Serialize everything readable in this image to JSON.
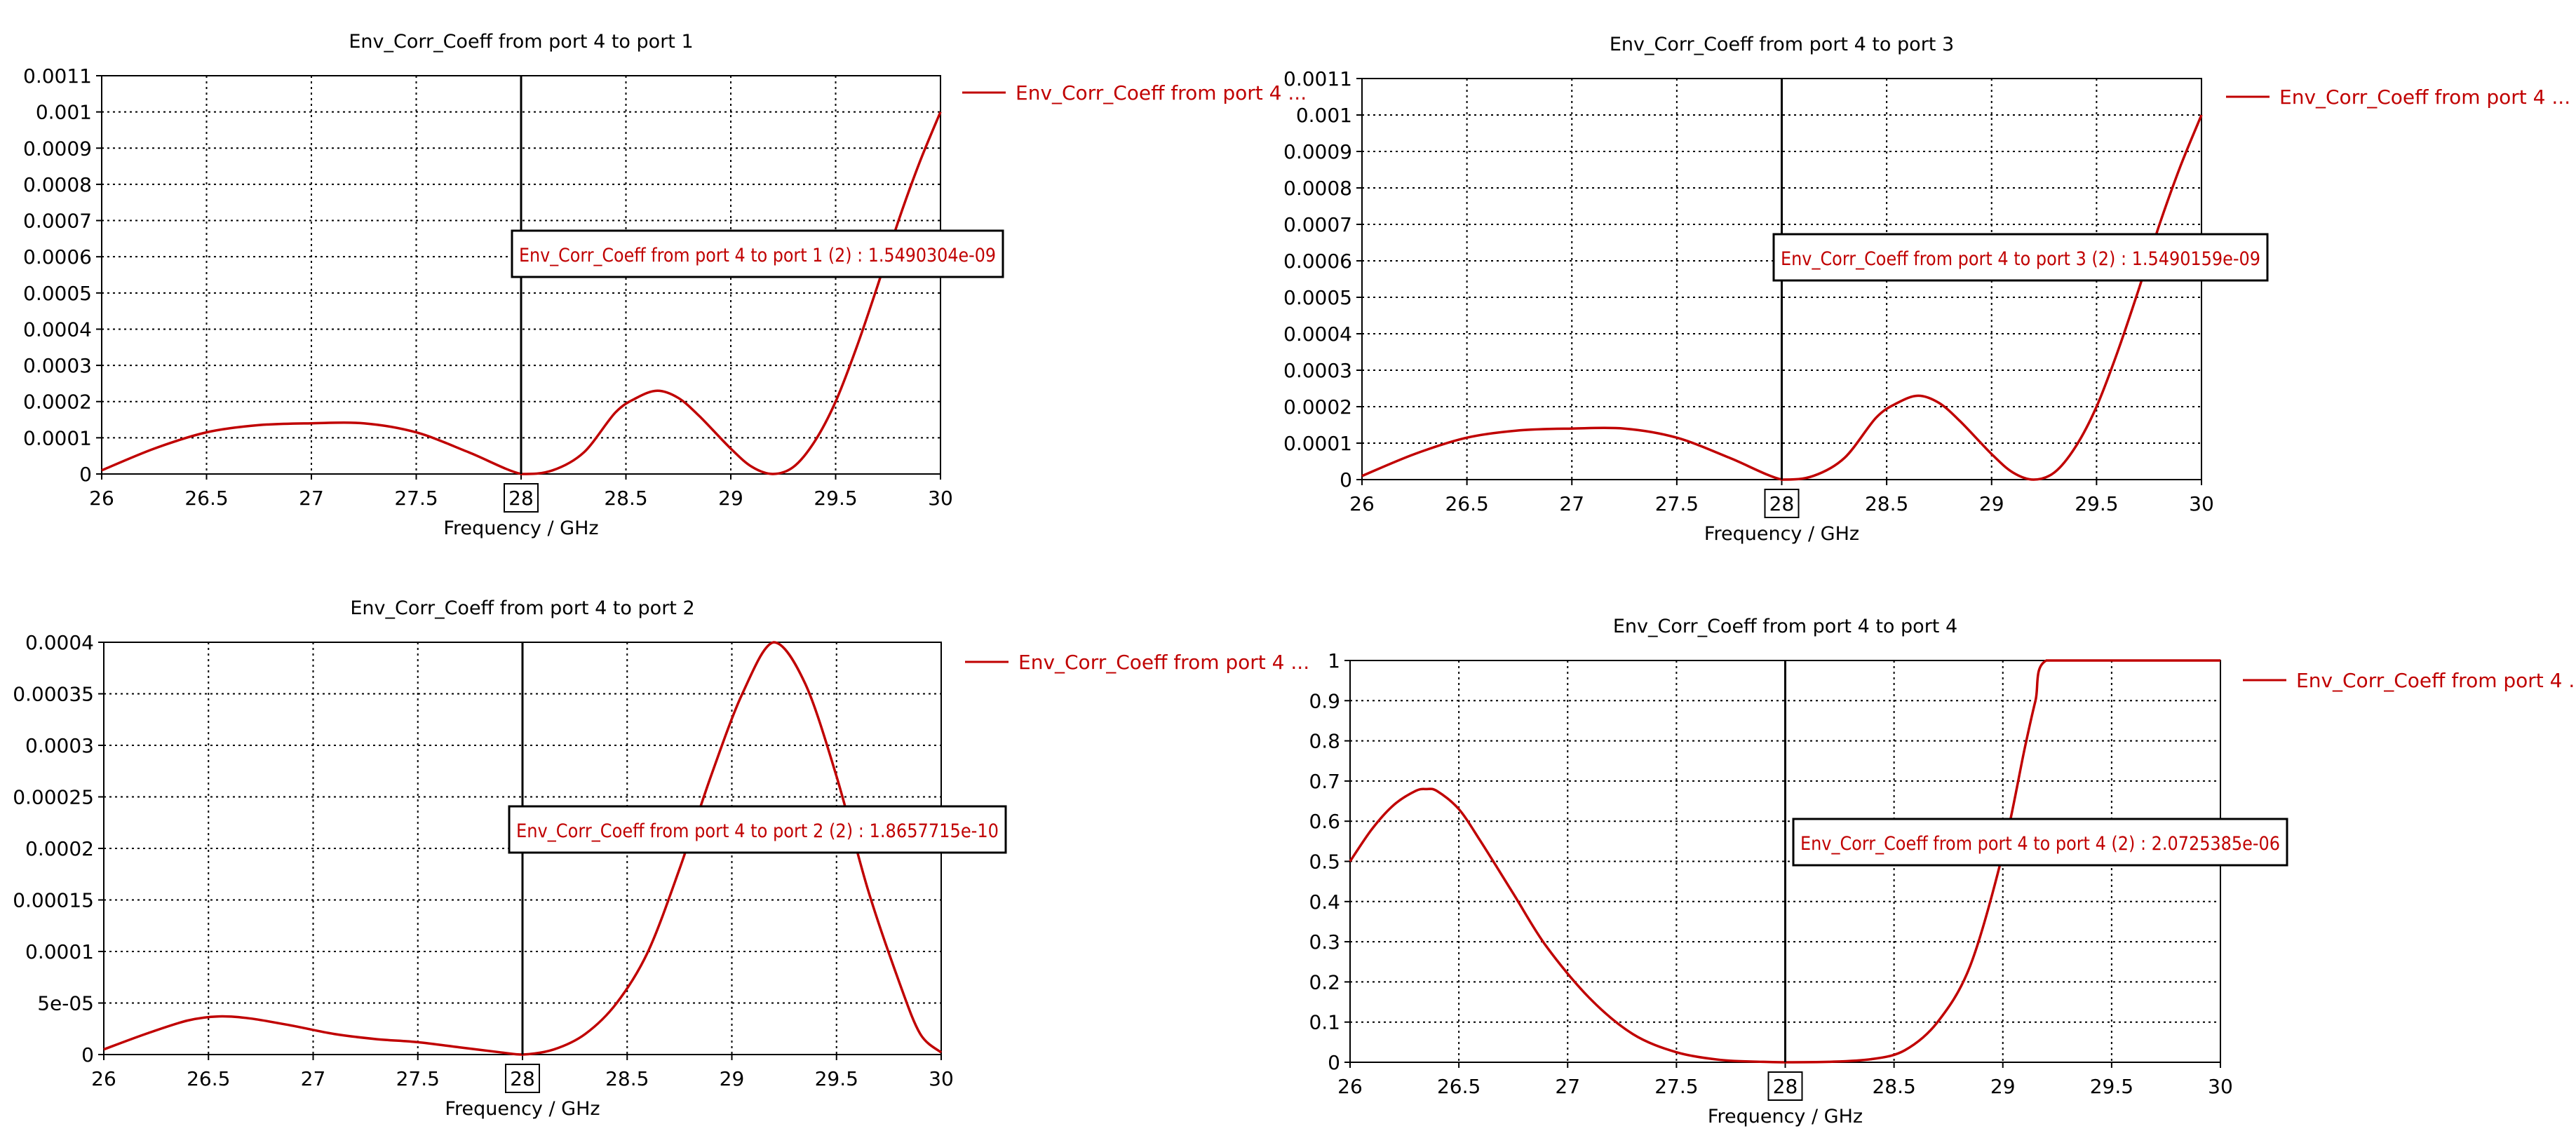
{
  "style": {
    "curve_color": "#c00000",
    "grid_color": "#000000",
    "axis_color": "#000000",
    "marker_box_color": "#000000"
  },
  "chart_data": [
    {
      "type": "line",
      "title": "Env_Corr_Coeff from port 4 to port 1",
      "xlabel": "Frequency / GHz",
      "ylabel": "",
      "xlim": [
        26,
        30
      ],
      "ylim": [
        0,
        0.0011
      ],
      "x_ticks": [
        "26",
        "26.5",
        "27",
        "27.5",
        "28",
        "28.5",
        "29",
        "29.5",
        "30"
      ],
      "y_ticks": [
        "0",
        "0.0001",
        "0.0002",
        "0.0003",
        "0.0004",
        "0.0005",
        "0.0006",
        "0.0007",
        "0.0008",
        "0.0009",
        "0.001",
        "0.0011"
      ],
      "grid": true,
      "legend": "top-right",
      "marker": {
        "x": 28,
        "x_label": "28",
        "label": "Env_Corr_Coeff from port 4 to port 1 (2) : 1.5490304e-09"
      },
      "series": [
        {
          "name": "Env_Corr_Coeff from port 4 ...",
          "x": [
            26,
            26.25,
            26.5,
            26.75,
            27,
            27.25,
            27.5,
            27.75,
            28,
            28.15,
            28.3,
            28.45,
            28.55,
            28.65,
            28.75,
            28.85,
            29,
            29.1,
            29.2,
            29.3,
            29.4,
            29.5,
            29.6,
            29.7,
            29.8,
            29.9,
            30
          ],
          "y": [
            1e-05,
            7e-05,
            0.000115,
            0.000135,
            0.00014,
            0.00014,
            0.000115,
            6e-05,
            1e-07,
            1e-05,
            6e-05,
            0.00017,
            0.00021,
            0.00023,
            0.00021,
            0.00016,
            7e-05,
            2e-05,
            0,
            2e-05,
            9e-05,
            0.0002,
            0.00035,
            0.00052,
            0.0007,
            0.00086,
            0.001
          ]
        }
      ]
    },
    {
      "type": "line",
      "title": "Env_Corr_Coeff from port 4 to port 3",
      "xlabel": "Frequency / GHz",
      "ylabel": "",
      "xlim": [
        26,
        30
      ],
      "ylim": [
        0,
        0.0011
      ],
      "x_ticks": [
        "26",
        "26.5",
        "27",
        "27.5",
        "28",
        "28.5",
        "29",
        "29.5",
        "30"
      ],
      "y_ticks": [
        "0",
        "0.0001",
        "0.0002",
        "0.0003",
        "0.0004",
        "0.0005",
        "0.0006",
        "0.0007",
        "0.0008",
        "0.0009",
        "0.001",
        "0.0011"
      ],
      "grid": true,
      "legend": "top-right",
      "marker": {
        "x": 28,
        "x_label": "28",
        "label": "Env_Corr_Coeff from port 4 to port 3 (2) : 1.5490159e-09"
      },
      "series": [
        {
          "name": "Env_Corr_Coeff from port 4 ...",
          "x": [
            26,
            26.25,
            26.5,
            26.75,
            27,
            27.25,
            27.5,
            27.75,
            28,
            28.15,
            28.3,
            28.45,
            28.55,
            28.65,
            28.75,
            28.85,
            29,
            29.1,
            29.2,
            29.3,
            29.4,
            29.5,
            29.6,
            29.7,
            29.8,
            29.9,
            30
          ],
          "y": [
            1e-05,
            7e-05,
            0.000115,
            0.000135,
            0.00014,
            0.00014,
            0.000115,
            6e-05,
            1e-07,
            1e-05,
            6e-05,
            0.00017,
            0.00021,
            0.00023,
            0.00021,
            0.00016,
            7e-05,
            2e-05,
            0,
            2e-05,
            9e-05,
            0.0002,
            0.00035,
            0.00052,
            0.0007,
            0.00086,
            0.001
          ]
        }
      ]
    },
    {
      "type": "line",
      "title": "Env_Corr_Coeff from port 4 to port 2",
      "xlabel": "Frequency / GHz",
      "ylabel": "",
      "xlim": [
        26,
        30
      ],
      "ylim": [
        0,
        0.0004
      ],
      "x_ticks": [
        "26",
        "26.5",
        "27",
        "27.5",
        "28",
        "28.5",
        "29",
        "29.5",
        "30"
      ],
      "y_ticks": [
        "0",
        "5e-05",
        "0.0001",
        "0.00015",
        "0.0002",
        "0.00025",
        "0.0003",
        "0.00035",
        "0.0004"
      ],
      "grid": true,
      "legend": "top-right",
      "marker": {
        "x": 28,
        "x_label": "28",
        "label": "Env_Corr_Coeff from port 4 to port 2 (2) : 1.8657715e-10"
      },
      "series": [
        {
          "name": "Env_Corr_Coeff from port 4 ...",
          "x": [
            26,
            26.2,
            26.4,
            26.55,
            26.7,
            26.9,
            27.1,
            27.3,
            27.5,
            27.7,
            27.9,
            28,
            28.15,
            28.3,
            28.45,
            28.6,
            28.75,
            28.9,
            29.05,
            29.2,
            29.35,
            29.5,
            29.65,
            29.8,
            29.9,
            30
          ],
          "y": [
            5e-06,
            2e-05,
            3.3e-05,
            3.7e-05,
            3.5e-05,
            2.8e-05,
            2e-05,
            1.5e-05,
            1.2e-05,
            7e-06,
            2e-06,
            0,
            5e-06,
            2e-05,
            5e-05,
            0.0001,
            0.00018,
            0.00027,
            0.00035,
            0.0004,
            0.00036,
            0.00027,
            0.00016,
            7e-05,
            2e-05,
            2e-06
          ]
        }
      ]
    },
    {
      "type": "line",
      "title": "Env_Corr_Coeff from port 4 to port 4",
      "xlabel": "Frequency / GHz",
      "ylabel": "",
      "xlim": [
        26,
        30
      ],
      "ylim": [
        0,
        1
      ],
      "x_ticks": [
        "26",
        "26.5",
        "27",
        "27.5",
        "28",
        "28.5",
        "29",
        "29.5",
        "30"
      ],
      "y_ticks": [
        "0",
        "0.1",
        "0.2",
        "0.3",
        "0.4",
        "0.5",
        "0.6",
        "0.7",
        "0.8",
        "0.9",
        "1"
      ],
      "grid": true,
      "legend": "top-right",
      "marker": {
        "x": 28,
        "x_label": "28",
        "label": "Env_Corr_Coeff from port 4 to port 4 (2) : 2.0725385e-06"
      },
      "series": [
        {
          "name": "Env_Corr_Coeff from port 4 ...",
          "x": [
            26,
            26.1,
            26.2,
            26.3,
            26.35,
            26.4,
            26.5,
            26.6,
            26.75,
            26.9,
            27.1,
            27.3,
            27.5,
            27.7,
            27.9,
            28,
            28.2,
            28.4,
            28.55,
            28.7,
            28.85,
            29,
            29.1,
            29.15,
            29.2,
            29.5,
            30
          ],
          "y": [
            0.5,
            0.58,
            0.64,
            0.675,
            0.68,
            0.675,
            0.63,
            0.55,
            0.42,
            0.29,
            0.16,
            0.07,
            0.025,
            0.006,
            0.001,
            0,
            0.001,
            0.008,
            0.03,
            0.1,
            0.24,
            0.52,
            0.78,
            0.9,
            1,
            1,
            1
          ]
        }
      ]
    }
  ]
}
